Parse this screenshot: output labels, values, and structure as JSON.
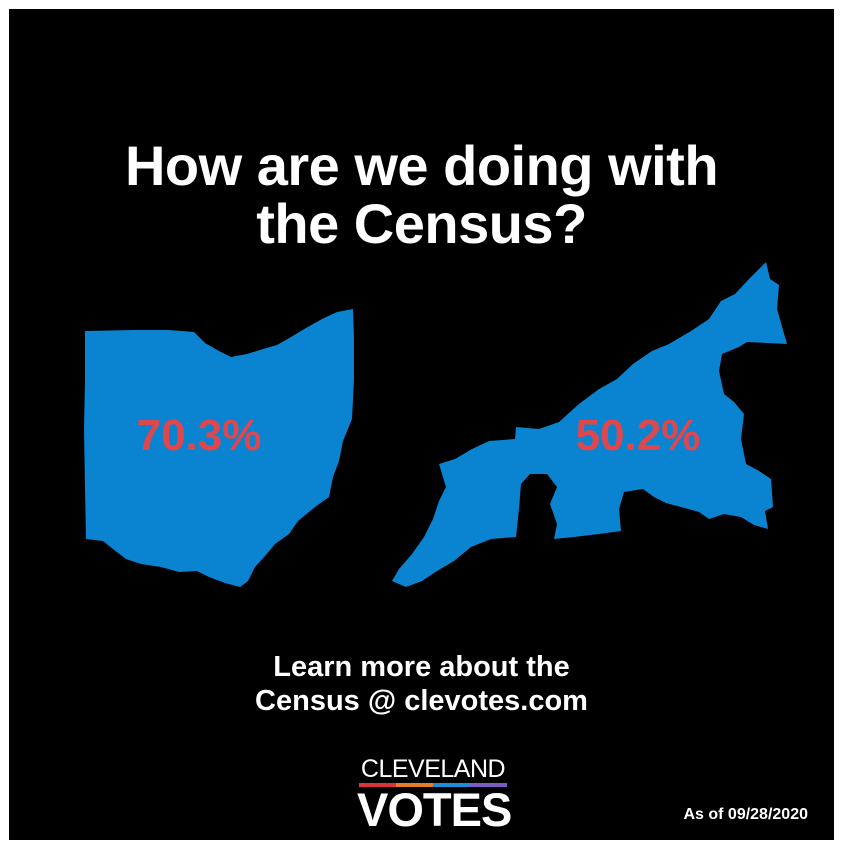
{
  "title": {
    "line1": "How are we doing with",
    "line2": "the Census?"
  },
  "maps": {
    "ohio": {
      "percent": "70.3%"
    },
    "cleveland": {
      "percent": "50.2%"
    },
    "map_color": "#0a84d0",
    "percent_color": "#e0474c"
  },
  "cta": {
    "line1": "Learn more about the",
    "line2": "Census @ clevotes.com"
  },
  "logo": {
    "top": "CLEVELAND",
    "bottom": "VOTES",
    "bar_colors": [
      "#d9343a",
      "#e87b2c",
      "#1c8fd6",
      "#7a5cc4"
    ]
  },
  "as_of": "As of 09/28/2020"
}
